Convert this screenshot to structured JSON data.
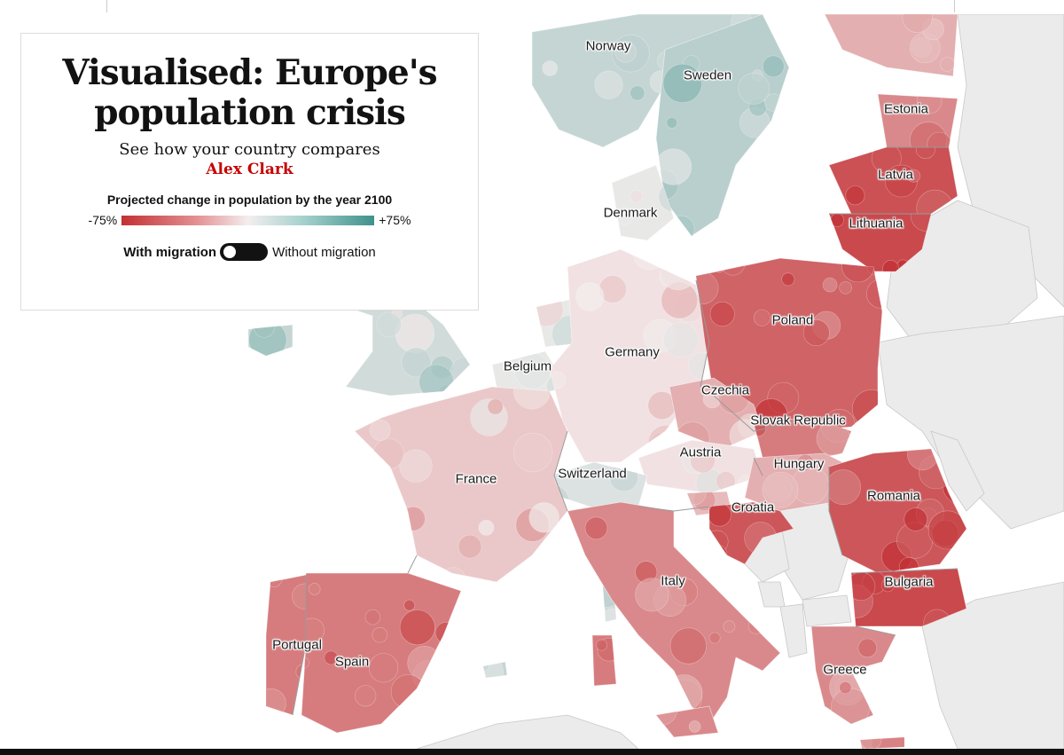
{
  "header": {
    "title": "Visualised: Europe's population crisis",
    "subtitle": "See how your country compares",
    "byline": "Alex Clark"
  },
  "legend": {
    "title": "Projected change in population by the year 2100",
    "min_label": "-75%",
    "max_label": "+75%",
    "colors": {
      "decline": "#c23034",
      "neutral": "#f4eeee",
      "growth": "#3f918b"
    }
  },
  "toggle": {
    "left_label": "With migration",
    "right_label": "Without migration",
    "state": "with-migration"
  },
  "map": {
    "background": "#ffffff",
    "land_color": "#ebebeb",
    "border_color": "#9a9a9a",
    "countries": [
      {
        "key": "norway",
        "label": "Norway",
        "change": 20
      },
      {
        "key": "sweden",
        "label": "Sweden",
        "change": 25
      },
      {
        "key": "estonia",
        "label": "Estonia",
        "change": -40
      },
      {
        "key": "latvia",
        "label": "Latvia",
        "change": -62
      },
      {
        "key": "lithuania",
        "label": "Lithuania",
        "change": -65
      },
      {
        "key": "denmark",
        "label": "Denmark",
        "change": 5
      },
      {
        "key": "poland",
        "label": "Poland",
        "change": -55
      },
      {
        "key": "belgium",
        "label": "Belgium",
        "change": 5
      },
      {
        "key": "germany",
        "label": "Germany",
        "change": -5
      },
      {
        "key": "czechia",
        "label": "Czechia",
        "change": -25
      },
      {
        "key": "slovak_republic",
        "label": "Slovak Republic",
        "change": -45
      },
      {
        "key": "austria",
        "label": "Austria",
        "change": -5
      },
      {
        "key": "hungary",
        "label": "Hungary",
        "change": -25
      },
      {
        "key": "france",
        "label": "France",
        "change": -15
      },
      {
        "key": "switzerland",
        "label": "Switzerland",
        "change": 10
      },
      {
        "key": "croatia",
        "label": "Croatia",
        "change": -60
      },
      {
        "key": "romania",
        "label": "Romania",
        "change": -60
      },
      {
        "key": "bulgaria",
        "label": "Bulgaria",
        "change": -65
      },
      {
        "key": "italy",
        "label": "Italy",
        "change": -40
      },
      {
        "key": "portugal",
        "label": "Portugal",
        "change": -45
      },
      {
        "key": "spain",
        "label": "Spain",
        "change": -45
      },
      {
        "key": "greece",
        "label": "Greece",
        "change": -40
      },
      {
        "key": "finland",
        "change": -25
      },
      {
        "key": "united_kingdom",
        "change": 15
      },
      {
        "key": "ireland",
        "change": 20
      },
      {
        "key": "netherlands",
        "change": 5
      },
      {
        "key": "slovenia",
        "change": -20
      },
      {
        "key": "bosnia",
        "change": 0
      },
      {
        "key": "serbia",
        "change": 0
      },
      {
        "key": "montenegro",
        "change": 0
      },
      {
        "key": "albania",
        "change": 0
      },
      {
        "key": "north_macedonia",
        "change": 0
      },
      {
        "key": "belarus",
        "change": 0
      },
      {
        "key": "ukraine",
        "change": 0
      },
      {
        "key": "moldova",
        "change": 0
      },
      {
        "key": "russia",
        "change": 0
      },
      {
        "key": "turkey",
        "change": 0
      },
      {
        "key": "north_africa",
        "change": 0
      },
      {
        "key": "corsica",
        "change": 15
      },
      {
        "key": "sardinia",
        "change": -45
      },
      {
        "key": "sicily",
        "change": -40
      },
      {
        "key": "crete",
        "change": -30
      },
      {
        "key": "mallorca",
        "change": 20
      }
    ]
  }
}
